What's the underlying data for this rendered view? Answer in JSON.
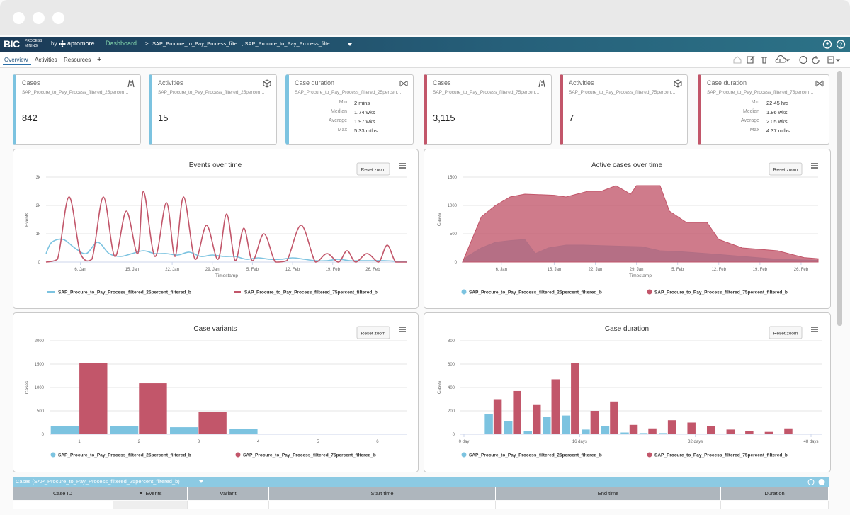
{
  "header": {
    "logo": "BIC",
    "logo_top": "PROCESS",
    "logo_bottom": "MINING",
    "by": "by",
    "brand": "apromore",
    "section": "Dashboard",
    "separator": ">",
    "breadcrumb": "SAP_Procure_to_Pay_Process_filte..., SAP_Procure_to_Pay_Process_filte..."
  },
  "tabs": [
    "Overview",
    "Activities",
    "Resources"
  ],
  "add_tab": "+",
  "cards": [
    {
      "title": "Cases",
      "log": "SAP_Procure_to_Pay_Process_filtered_25percent_filtered_b",
      "value": "842"
    },
    {
      "title": "Activities",
      "log": "SAP_Procure_to_Pay_Process_filtered_25percent_filtered_b",
      "value": "15"
    },
    {
      "title": "Case duration",
      "log": "SAP_Procure_to_Pay_Process_filtered_25percent_filtered_b",
      "stats": [
        {
          "label": "Min",
          "value": "2 mins"
        },
        {
          "label": "Median",
          "value": "1.74 wks"
        },
        {
          "label": "Average",
          "value": "1.97 wks"
        },
        {
          "label": "Max",
          "value": "5.33 mths"
        }
      ]
    },
    {
      "title": "Cases",
      "log": "SAP_Procure_to_Pay_Process_filtered_75percent_filtered_b",
      "value": "3,115"
    },
    {
      "title": "Activities",
      "log": "SAP_Procure_to_Pay_Process_filtered_75percent_filtered_b",
      "value": "7"
    },
    {
      "title": "Case duration",
      "log": "SAP_Procure_to_Pay_Process_filtered_75percent_filtered_b",
      "stats": [
        {
          "label": "Min",
          "value": "22.45 hrs"
        },
        {
          "label": "Median",
          "value": "1.86 wks"
        },
        {
          "label": "Average",
          "value": "2.05 wks"
        },
        {
          "label": "Max",
          "value": "4.37 mths"
        }
      ]
    }
  ],
  "charts": [
    {
      "type": "line",
      "title": "Events over time",
      "reset_button": "Reset zoom",
      "y_label": "Events",
      "x_label": "Timestamp",
      "xlim": [
        0,
        63
      ],
      "xticks": [
        {
          "value": 6,
          "label": "6. Jan"
        },
        {
          "value": 15,
          "label": "15. Jan"
        },
        {
          "value": 22,
          "label": "22. Jan"
        },
        {
          "value": 29,
          "label": "29. Jan"
        },
        {
          "value": 36,
          "label": "5. Feb"
        },
        {
          "value": 43,
          "label": "12. Feb"
        },
        {
          "value": 50,
          "label": "19. Feb"
        },
        {
          "value": 57,
          "label": "26. Feb"
        }
      ],
      "ylim": [
        0,
        3000
      ],
      "yticks": [
        0,
        {
          "value": 1000,
          "label": "1k"
        },
        {
          "value": 2000,
          "label": "2k"
        },
        {
          "value": 3000,
          "label": "3k"
        }
      ],
      "grid": true,
      "series": [
        {
          "name": "SAP_Procure_to_Pay_Process_filtered_25percent_filtered_b",
          "color": "#7cc3e0",
          "x": [
            0,
            1,
            3,
            5,
            7,
            9,
            11,
            13,
            15,
            17,
            19,
            21,
            23,
            25,
            27,
            29,
            31,
            33,
            35,
            37,
            39,
            41,
            43,
            45,
            47,
            49,
            51,
            53,
            55,
            57,
            59,
            61,
            63
          ],
          "values": [
            300,
            700,
            800,
            500,
            300,
            700,
            300,
            200,
            300,
            400,
            300,
            300,
            250,
            350,
            200,
            250,
            200,
            200,
            100,
            150,
            100,
            100,
            150,
            100,
            50,
            50,
            100,
            50,
            50,
            50,
            50,
            30,
            0
          ]
        },
        {
          "name": "SAP_Procure_to_Pay_Process_filtered_75percent_filtered_b",
          "color": "#c2566a",
          "x": [
            0,
            2,
            4,
            6,
            8,
            10,
            12,
            14,
            16,
            17,
            19,
            21,
            22.5,
            24,
            26,
            28,
            30,
            31.5,
            33,
            34.5,
            36,
            38,
            40,
            42,
            44.5,
            47,
            49,
            51,
            52.5,
            54,
            56,
            58,
            59.5,
            61,
            63
          ],
          "values": [
            0,
            100,
            2300,
            300,
            100,
            2300,
            200,
            1800,
            300,
            2500,
            200,
            2100,
            200,
            2300,
            100,
            1300,
            100,
            1700,
            50,
            1200,
            50,
            1000,
            0,
            50,
            1300,
            0,
            300,
            0,
            400,
            0,
            300,
            0,
            600,
            0,
            0
          ]
        }
      ]
    },
    {
      "type": "area",
      "title": "Active cases over time",
      "reset_button": "Reset zoom",
      "y_label": "Cases",
      "x_label": "Timestamp",
      "xlim": [
        -0.6,
        59.9
      ],
      "xticks": [
        {
          "value": 6,
          "label": "6. Jan"
        },
        {
          "value": 15,
          "label": "15. Jan"
        },
        {
          "value": 22,
          "label": "22. Jan"
        },
        {
          "value": 29,
          "label": "29. Jan"
        },
        {
          "value": 36,
          "label": "5. Feb"
        },
        {
          "value": 43,
          "label": "12. Feb"
        },
        {
          "value": 50,
          "label": "19. Feb"
        },
        {
          "value": 57,
          "label": "26. Feb"
        }
      ],
      "ylim": [
        0,
        1500
      ],
      "yticks": [
        0,
        500,
        1000,
        1500
      ],
      "grid": true,
      "series": [
        {
          "name": "SAP_Procure_to_Pay_Process_filtered_25percent_filtered_b",
          "color": "#7cc3e0",
          "x": [
            -0.6,
            0.2,
            2.6,
            5,
            7.5,
            10,
            11.8,
            14,
            17,
            20,
            23,
            26.5,
            30,
            33,
            37,
            41,
            47,
            53,
            59.9
          ],
          "values": [
            0,
            100,
            250,
            350,
            380,
            400,
            150,
            250,
            300,
            300,
            290,
            280,
            270,
            200,
            180,
            150,
            100,
            50,
            30
          ]
        },
        {
          "name": "SAP_Procure_to_Pay_Process_filtered_75percent_filtered_b",
          "color": "#c2566a",
          "x": [
            -0.6,
            2.6,
            5,
            7.5,
            10,
            15,
            17,
            20.7,
            23,
            25.5,
            28,
            29,
            33,
            34.6,
            37.5,
            41,
            43,
            47,
            53,
            57.5,
            59.9
          ],
          "values": [
            0,
            800,
            1000,
            1150,
            1200,
            1180,
            1150,
            1250,
            1250,
            1350,
            1200,
            1350,
            1350,
            900,
            700,
            700,
            400,
            250,
            200,
            80,
            60
          ]
        }
      ]
    },
    {
      "type": "bar",
      "title": "Case variants",
      "reset_button": "Reset zoom",
      "y_label": "Cases",
      "categories": [
        "1",
        "2",
        "3",
        "4",
        "5",
        "6"
      ],
      "ylim": [
        0,
        2000
      ],
      "yticks": [
        0,
        500,
        1000,
        1500,
        2000
      ],
      "grid": true,
      "series": [
        {
          "name": "SAP_Procure_to_Pay_Process_filtered_25percent_filtered_b",
          "color": "#7cc3e0",
          "values": [
            180,
            180,
            150,
            120,
            10,
            null
          ]
        },
        {
          "name": "SAP_Procure_to_Pay_Process_filtered_75percent_filtered_b",
          "color": "#c2566a",
          "values": [
            1520,
            1090,
            470,
            null,
            null,
            null
          ]
        }
      ]
    },
    {
      "type": "bar",
      "title": "Case duration",
      "reset_button": "Reset zoom",
      "y_label": "Cases",
      "xlim": [
        0,
        48
      ],
      "xticks": [
        {
          "value": 0,
          "label": "0 day"
        },
        {
          "value": 16,
          "label": "16 days"
        },
        {
          "value": 32,
          "label": "32 days"
        },
        {
          "value": 48,
          "label": "48 days"
        }
      ],
      "x": [
        4.1,
        6.8,
        9.5,
        12.1,
        14.8,
        17.5,
        20.2,
        22.9,
        25.5,
        28.2,
        30.9,
        33.6,
        36.3,
        38.9,
        41.6,
        44.3
      ],
      "ylim": [
        0,
        800
      ],
      "yticks": [
        0,
        200,
        400,
        600,
        800
      ],
      "grid": true,
      "series": [
        {
          "name": "SAP_Procure_to_Pay_Process_filtered_25percent_filtered_b",
          "color": "#7cc3e0",
          "values": [
            170,
            110,
            30,
            150,
            160,
            40,
            70,
            15,
            10,
            10,
            5,
            5,
            5,
            5,
            5,
            null
          ]
        },
        {
          "name": "SAP_Procure_to_Pay_Process_filtered_75percent_filtered_b",
          "color": "#c2566a",
          "values": [
            300,
            370,
            250,
            470,
            610,
            200,
            280,
            80,
            50,
            120,
            100,
            70,
            40,
            25,
            20,
            50
          ]
        }
      ]
    }
  ],
  "table": {
    "title": "Cases (SAP_Procure_to_Pay_Process_filtered_25percent_filtered_b)",
    "columns": [
      "Case ID",
      "Events",
      "Variant",
      "Start time",
      "End time",
      "Duration"
    ]
  }
}
